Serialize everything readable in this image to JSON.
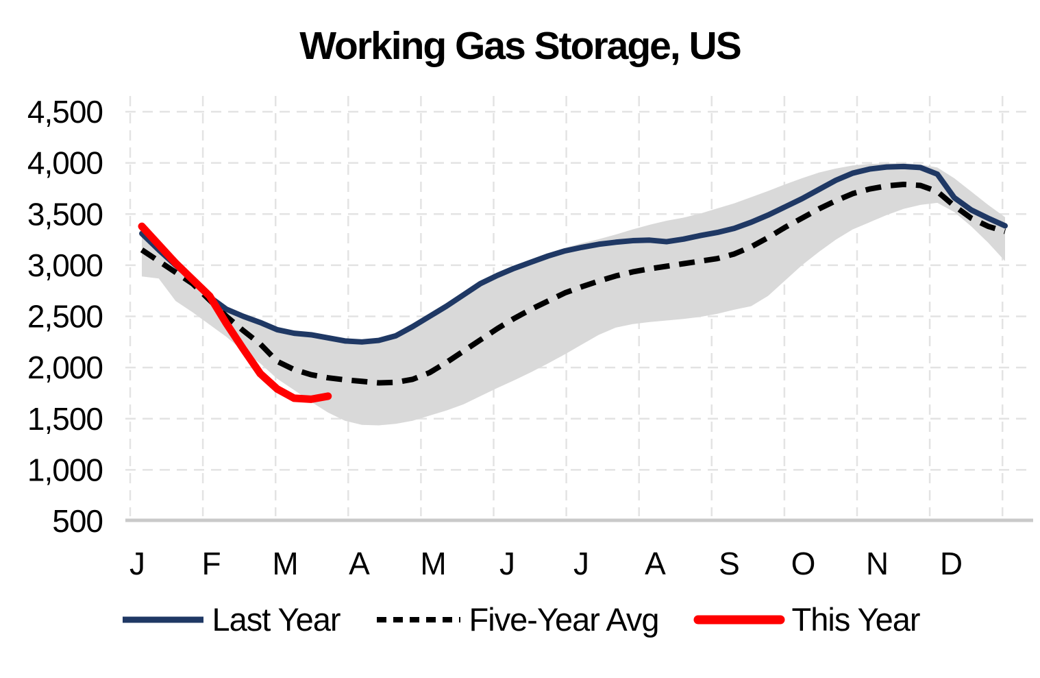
{
  "title": "Working Gas Storage, US",
  "legend": {
    "items": [
      {
        "label": "Last Year",
        "color": "#1F3864",
        "style": "solid"
      },
      {
        "label": "Five-Year Avg",
        "color": "#000000",
        "style": "dashed"
      },
      {
        "label": "This Year",
        "color": "#FF0000",
        "style": "solid-thick"
      }
    ]
  },
  "chart_data": {
    "type": "line",
    "title": "Working Gas Storage, US",
    "x_unit": "weekly points, January through December",
    "x_tick_labels": [
      "J",
      "F",
      "M",
      "A",
      "M",
      "J",
      "J",
      "A",
      "S",
      "O",
      "N",
      "D"
    ],
    "y_tick_labels": [
      "4,500",
      "4,000",
      "3,500",
      "3,000",
      "2,500",
      "2,000",
      "1,500",
      "1,000",
      "500"
    ],
    "y_ticks": [
      4500,
      4000,
      3500,
      3000,
      2500,
      2000,
      1500,
      1000,
      500
    ],
    "ylim": [
      500,
      4500
    ],
    "grid": "dashed light-gray, horizontal and vertical (monthly)",
    "legend_position": "bottom",
    "band": {
      "name": "five-year min-max range",
      "color": "#D9D9D9",
      "top": [
        3290,
        3130,
        2980,
        2840,
        2690,
        2575,
        2505,
        2445,
        2380,
        2345,
        2325,
        2295,
        2265,
        2255,
        2270,
        2320,
        2410,
        2520,
        2630,
        2740,
        2845,
        2925,
        2995,
        3055,
        3115,
        3170,
        3215,
        3255,
        3300,
        3350,
        3395,
        3435,
        3465,
        3505,
        3555,
        3605,
        3665,
        3725,
        3790,
        3850,
        3905,
        3945,
        3975,
        3990,
        3995,
        3995,
        3985,
        3955,
        3850,
        3720,
        3590,
        3470
      ],
      "bottom": [
        2890,
        2870,
        2650,
        2540,
        2420,
        2300,
        2160,
        2040,
        1890,
        1780,
        1665,
        1560,
        1480,
        1440,
        1435,
        1450,
        1480,
        1530,
        1580,
        1640,
        1720,
        1800,
        1875,
        1955,
        2040,
        2130,
        2225,
        2320,
        2390,
        2425,
        2445,
        2460,
        2475,
        2495,
        2525,
        2565,
        2600,
        2700,
        2850,
        3000,
        3130,
        3250,
        3350,
        3420,
        3490,
        3550,
        3590,
        3610,
        3520,
        3380,
        3220,
        3040
      ]
    },
    "series": [
      {
        "name": "Last Year",
        "color": "#1F3864",
        "style": "solid",
        "stroke_width": 8,
        "values": [
          3310,
          3150,
          3000,
          2860,
          2690,
          2570,
          2500,
          2440,
          2370,
          2335,
          2320,
          2290,
          2260,
          2250,
          2265,
          2310,
          2400,
          2500,
          2600,
          2710,
          2820,
          2900,
          2970,
          3030,
          3090,
          3140,
          3175,
          3205,
          3225,
          3240,
          3245,
          3230,
          3255,
          3290,
          3320,
          3360,
          3420,
          3490,
          3570,
          3650,
          3740,
          3830,
          3900,
          3940,
          3960,
          3965,
          3955,
          3890,
          3660,
          3540,
          3460,
          3385
        ]
      },
      {
        "name": "Five-Year Avg",
        "color": "#000000",
        "style": "dashed",
        "stroke_width": 8,
        "values": [
          3150,
          3040,
          2930,
          2820,
          2660,
          2500,
          2360,
          2230,
          2060,
          1980,
          1930,
          1900,
          1880,
          1865,
          1850,
          1855,
          1885,
          1950,
          2050,
          2160,
          2270,
          2380,
          2480,
          2570,
          2650,
          2730,
          2790,
          2845,
          2895,
          2935,
          2965,
          2990,
          3015,
          3040,
          3065,
          3110,
          3180,
          3270,
          3370,
          3460,
          3550,
          3630,
          3700,
          3745,
          3775,
          3790,
          3780,
          3720,
          3580,
          3460,
          3380,
          3330
        ]
      },
      {
        "name": "This Year",
        "color": "#FF0000",
        "style": "solid",
        "stroke_width": 11,
        "values": [
          3380,
          3200,
          3020,
          2860,
          2700,
          2430,
          2180,
          1940,
          1790,
          1700,
          1690,
          1720
        ]
      }
    ],
    "colors": {
      "gridline": "#E3E3E3",
      "axis_line": "#C9C9C9",
      "band": "#D9D9D9",
      "text": "#000000"
    }
  }
}
